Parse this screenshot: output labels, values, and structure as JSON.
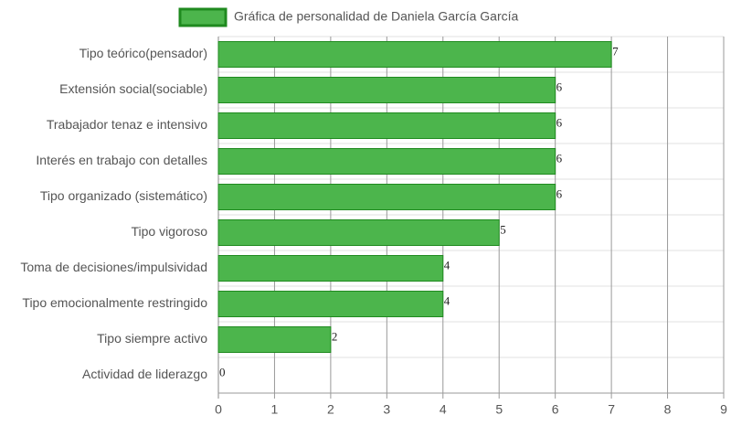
{
  "chart_data": {
    "type": "bar",
    "orientation": "horizontal",
    "categories": [
      "Tipo teórico(pensador)",
      "Extensión social(sociable)",
      "Trabajador tenaz e intensivo",
      "Interés en trabajo con detalles",
      "Tipo organizado (sistemático)",
      "Tipo vigoroso",
      "Toma de decisiones/impulsividad",
      "Tipo emocionalmente restringido",
      "Tipo siempre activo",
      "Actividad de liderazgo"
    ],
    "series": [
      {
        "name": "Gráfica de personalidad de Daniela García García",
        "color": "#4cb54c",
        "border_color": "#1f8a1f",
        "values": [
          7,
          6,
          6,
          6,
          6,
          5,
          4,
          4,
          2,
          0
        ]
      }
    ],
    "xlim": [
      0,
      9
    ],
    "xticks": [
      0,
      1,
      2,
      3,
      4,
      5,
      6,
      7,
      8,
      9
    ],
    "grid": true,
    "legend": "top"
  }
}
